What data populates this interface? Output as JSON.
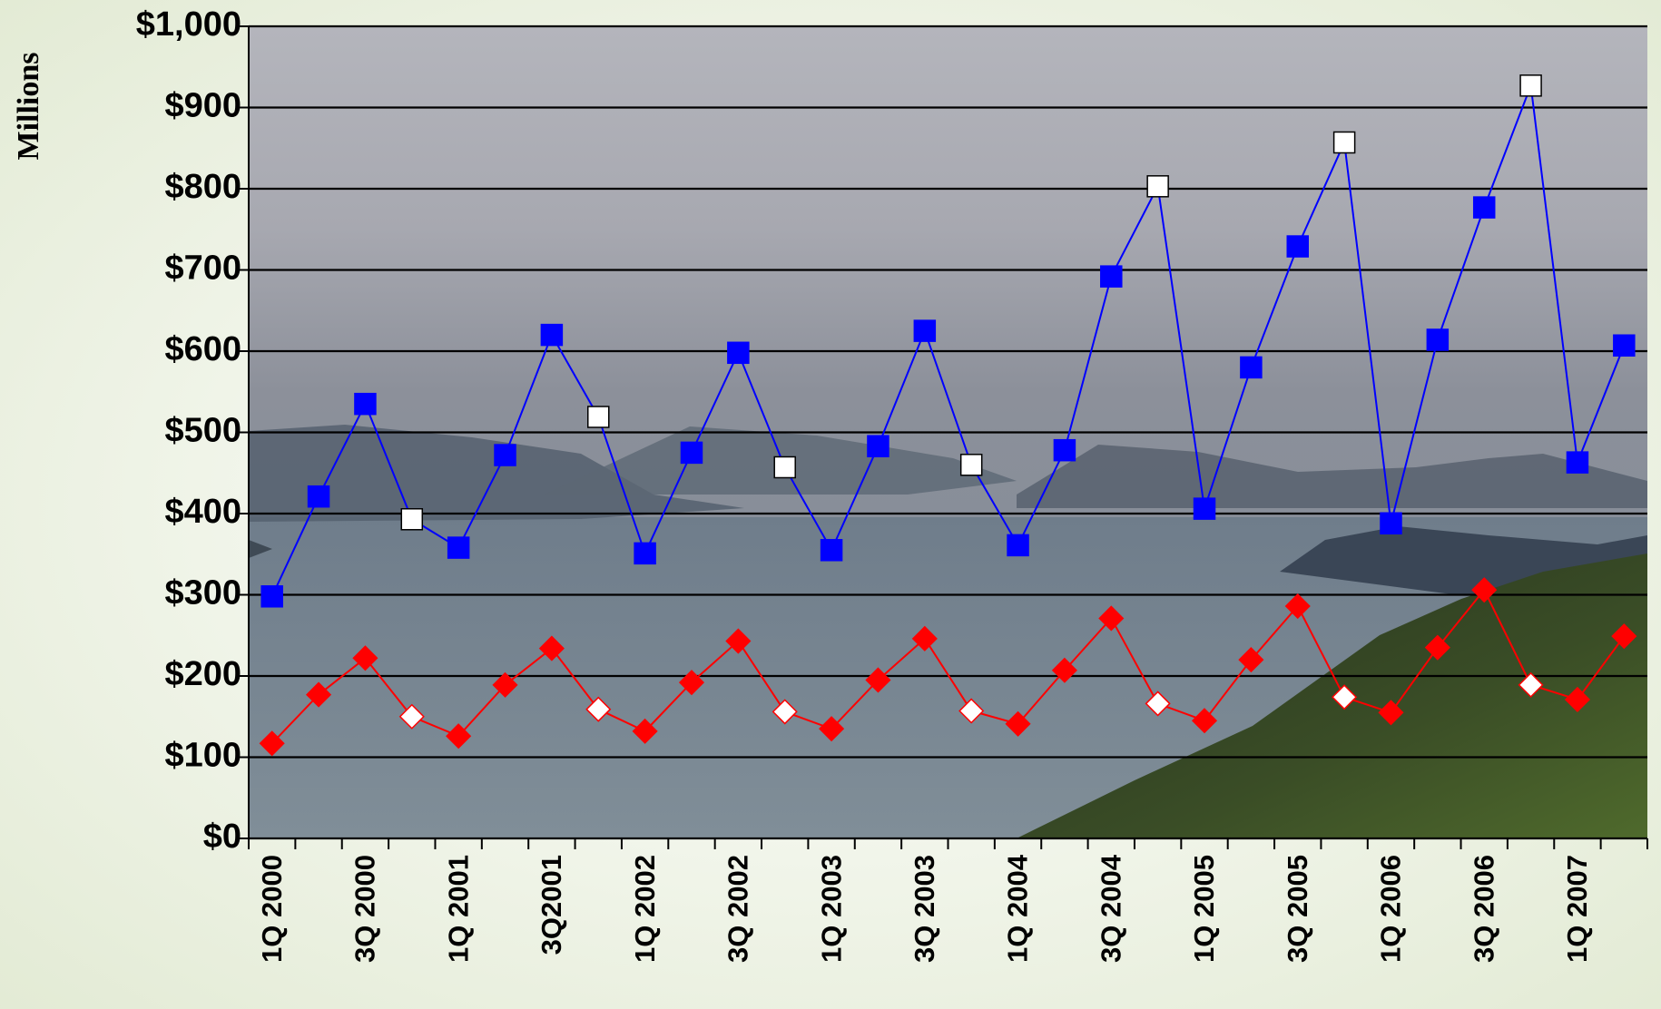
{
  "chart_data": {
    "type": "line",
    "y_label": "Millions",
    "categories": [
      "1Q 2000",
      null,
      "3Q 2000",
      null,
      "1Q 2001",
      null,
      "3Q2001",
      null,
      "1Q 2002",
      null,
      "3Q 2002",
      null,
      "1Q 2003",
      null,
      "3Q 2003",
      null,
      "1Q 2004",
      null,
      "3Q 2004",
      null,
      "1Q 2005",
      null,
      "3Q 2005",
      null,
      "1Q 2006",
      null,
      "3Q 2006",
      null,
      "1Q 2007",
      null
    ],
    "series": [
      {
        "color": "#0000ff",
        "marker": "square",
        "values": [
          298,
          421,
          535,
          393,
          358,
          472,
          620,
          519,
          351,
          475,
          598,
          457,
          355,
          483,
          625,
          460,
          361,
          478,
          692,
          803,
          406,
          580,
          729,
          857,
          388,
          614,
          777,
          927,
          463,
          607
        ]
      },
      {
        "color": "#ff0000",
        "marker": "diamond",
        "values": [
          117,
          177,
          222,
          150,
          126,
          189,
          234,
          159,
          132,
          192,
          243,
          156,
          135,
          195,
          246,
          157,
          141,
          207,
          271,
          166,
          145,
          220,
          286,
          174,
          155,
          235,
          306,
          189,
          171,
          249
        ]
      }
    ],
    "open_markers": [
      3,
      7,
      11,
      15,
      19,
      23,
      27
    ],
    "ylim": [
      0,
      1000
    ],
    "yticks": [
      {
        "value": 0,
        "label": "$0"
      },
      {
        "value": 100,
        "label": "$100"
      },
      {
        "value": 200,
        "label": "$200"
      },
      {
        "value": 300,
        "label": "$300"
      },
      {
        "value": 400,
        "label": "$400"
      },
      {
        "value": 500,
        "label": "$500"
      },
      {
        "value": 600,
        "label": "$600"
      },
      {
        "value": 700,
        "label": "$700"
      },
      {
        "value": 800,
        "label": "$800"
      },
      {
        "value": 900,
        "label": "$900"
      },
      {
        "value": 1000,
        "label": "$1,000"
      }
    ],
    "grid": true
  }
}
